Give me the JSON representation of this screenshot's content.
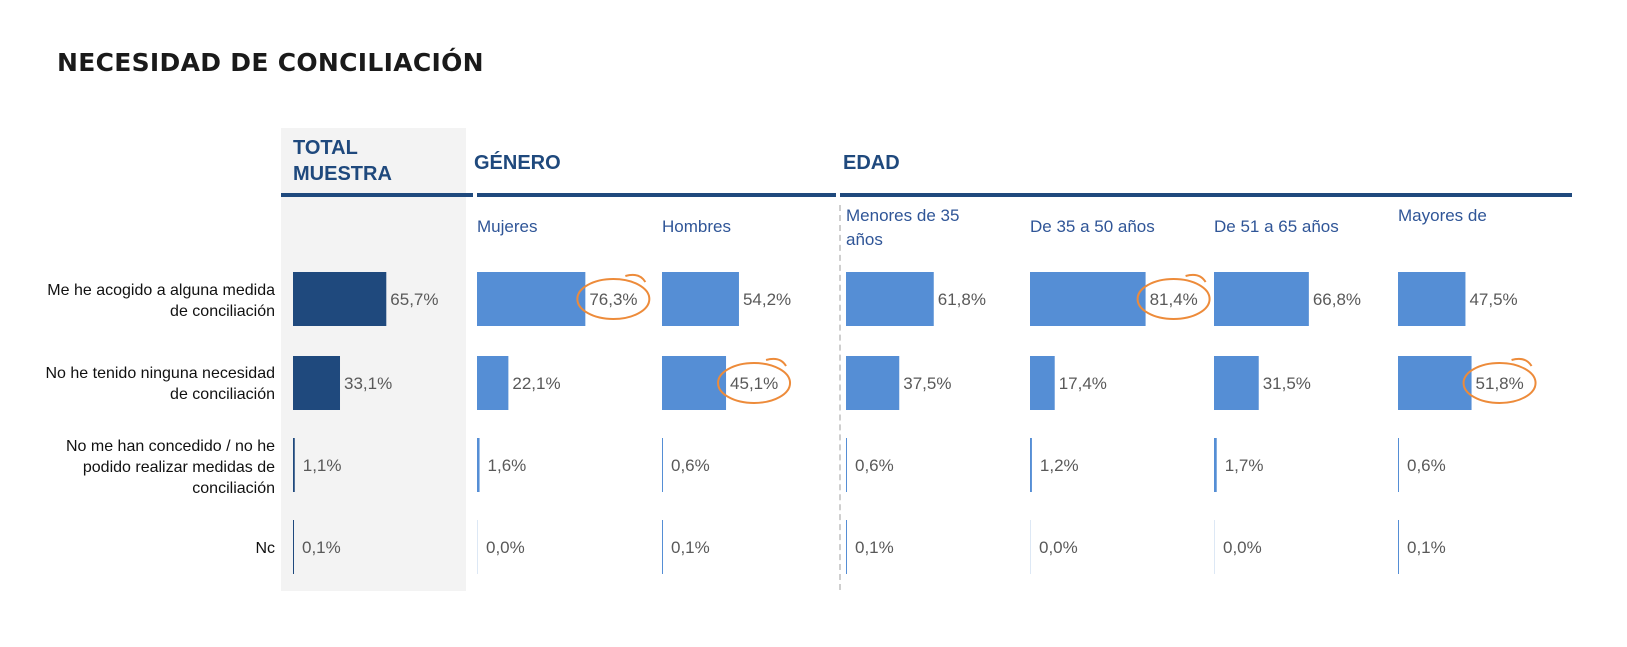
{
  "title": "NECESIDAD DE CONCILIACIÓN",
  "groups": {
    "total": "TOTAL MUESTRA",
    "genero": "GÉNERO",
    "edad": "EDAD"
  },
  "columns": [
    "",
    "Mujeres",
    "Hombres",
    "Menores de 35 años",
    "De 35 a 50 años",
    "De 51 a 65 años",
    "Mayores de"
  ],
  "rows": [
    "Me he acogido a alguna medida de conciliación",
    "No he tenido ninguna necesidad de conciliación",
    "No me han concedido / no he podido realizar medidas de conciliación",
    "Nc"
  ],
  "colors": {
    "total_bar": "#1f497d",
    "bar": "#558ed5",
    "highlight": "#ed8b3a",
    "header": "#1f497d"
  },
  "chart_data": {
    "type": "bar",
    "orientation": "horizontal",
    "categories": [
      "Me he acogido a alguna medida de conciliación",
      "No he tenido ninguna necesidad de conciliación",
      "No me han concedido / no he podido realizar medidas de conciliación",
      "Nc"
    ],
    "series": [
      {
        "name": "TOTAL MUESTRA",
        "values": [
          65.7,
          33.1,
          1.1,
          0.1
        ],
        "labels": [
          "65,7%",
          "33,1%",
          "1,1%",
          "0,1%"
        ],
        "highlight": []
      },
      {
        "name": "Mujeres",
        "values": [
          76.3,
          22.1,
          1.6,
          0.0
        ],
        "labels": [
          "76,3%",
          "22,1%",
          "1,6%",
          "0,0%"
        ],
        "highlight": [
          0
        ]
      },
      {
        "name": "Hombres",
        "values": [
          54.2,
          45.1,
          0.6,
          0.1
        ],
        "labels": [
          "54,2%",
          "45,1%",
          "0,6%",
          "0,1%"
        ],
        "highlight": [
          1
        ]
      },
      {
        "name": "Menores de 35 años",
        "values": [
          61.8,
          37.5,
          0.6,
          0.1
        ],
        "labels": [
          "61,8%",
          "37,5%",
          "0,6%",
          "0,1%"
        ],
        "highlight": []
      },
      {
        "name": "De 35 a 50 años",
        "values": [
          81.4,
          17.4,
          1.2,
          0.0
        ],
        "labels": [
          "81,4%",
          "17,4%",
          "1,2%",
          "0,0%"
        ],
        "highlight": [
          0
        ]
      },
      {
        "name": "De 51 a 65 años",
        "values": [
          66.8,
          31.5,
          1.7,
          0.0
        ],
        "labels": [
          "66,8%",
          "31,5%",
          "1,7%",
          "0,0%"
        ],
        "highlight": []
      },
      {
        "name": "Mayores de",
        "values": [
          47.5,
          51.8,
          0.6,
          0.1
        ],
        "labels": [
          "47,5%",
          "51,8%",
          "0,6%",
          "0,1%"
        ],
        "highlight": [
          1
        ]
      }
    ]
  }
}
